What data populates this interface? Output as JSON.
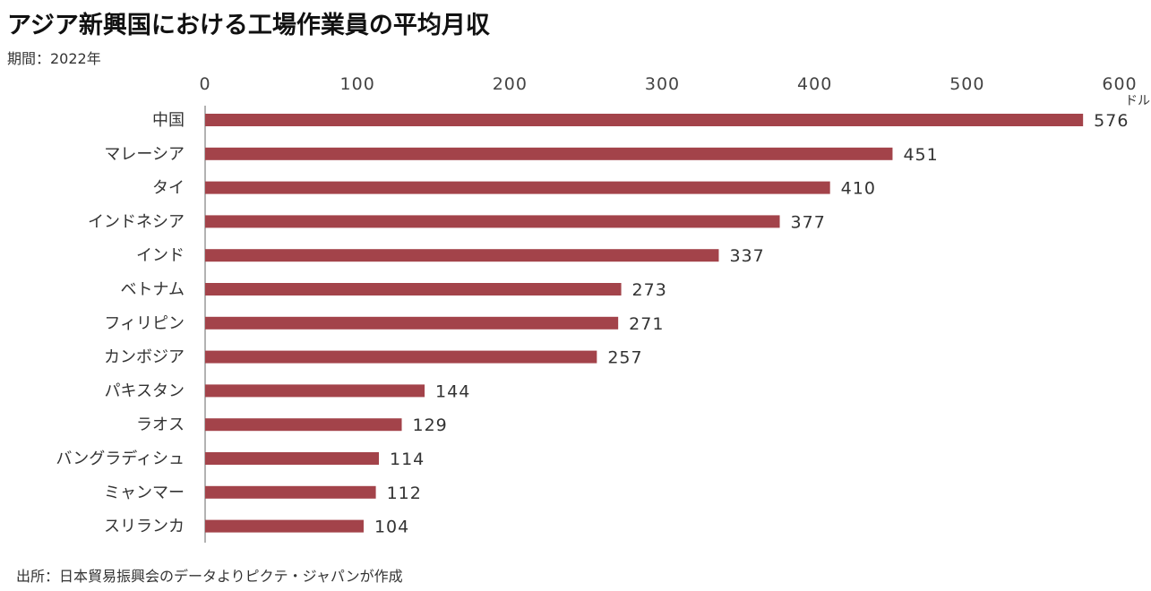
{
  "header": {
    "title": "アジア新興国における工場作業員の平均月収",
    "subtitle": "期間：2022年"
  },
  "footer": {
    "source": "出所：日本貿易振興会のデータよりピクテ・ジャパンが作成"
  },
  "colors": {
    "bar": "#a3434a",
    "axis": "#999999"
  },
  "chart_data": {
    "type": "bar",
    "orientation": "horizontal",
    "categories": [
      "中国",
      "マレーシア",
      "タイ",
      "インドネシア",
      "インド",
      "ベトナム",
      "フィリピン",
      "カンボジア",
      "パキスタン",
      "ラオス",
      "バングラディシュ",
      "ミャンマー",
      "スリランカ"
    ],
    "values": [
      576,
      451,
      410,
      377,
      337,
      273,
      271,
      257,
      144,
      129,
      114,
      112,
      104
    ],
    "unit": "ドル",
    "xlim": [
      0,
      600
    ],
    "ticks": [
      0,
      100,
      200,
      300,
      400,
      500,
      600
    ],
    "axis_position": "top",
    "grid": false,
    "legend": "none",
    "data_labels": true
  }
}
